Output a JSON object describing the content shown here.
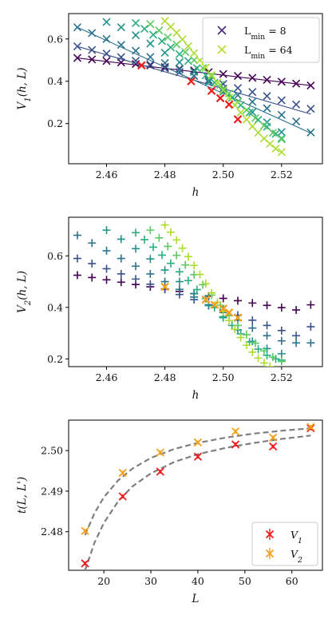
{
  "chart_data": [
    {
      "id": "v1",
      "type": "scatter",
      "xlabel": "h",
      "ylabel": "V_1(h, L)",
      "xlim": [
        2.447,
        2.534
      ],
      "ylim": [
        0.01,
        0.72
      ],
      "xticks": [
        2.46,
        2.48,
        2.5,
        2.52
      ],
      "xtick_labels": [
        "2.46",
        "2.48",
        "2.50",
        "2.52"
      ],
      "yticks": [
        0.2,
        0.4,
        0.6
      ],
      "ytick_labels": [
        "0.2",
        "0.4",
        "0.6"
      ],
      "grid": false,
      "legend_position": "top-right",
      "legend": [
        {
          "label": "L_min = 8",
          "color": "#472c7a"
        },
        {
          "label": "L_min = 64",
          "color": "#b5de2b"
        }
      ],
      "marker": "x",
      "series": [
        {
          "color": "#440154",
          "x": [
            2.45,
            2.455,
            2.46,
            2.465,
            2.47,
            2.475,
            2.48,
            2.485,
            2.49,
            2.495,
            2.5,
            2.505,
            2.51,
            2.515,
            2.52,
            2.525,
            2.53
          ],
          "y": [
            0.51,
            0.503,
            0.496,
            0.489,
            0.482,
            0.475,
            0.467,
            0.459,
            0.451,
            0.443,
            0.434,
            0.425,
            0.416,
            0.407,
            0.398,
            0.389,
            0.38
          ],
          "fit": [
            [
              2.45,
              0.51
            ],
            [
              2.53,
              0.38
            ]
          ]
        },
        {
          "color": "#3b518b",
          "x": [
            2.45,
            2.455,
            2.46,
            2.465,
            2.47,
            2.475,
            2.48,
            2.485,
            2.49,
            2.495,
            2.5,
            2.505,
            2.51,
            2.515,
            2.52,
            2.525,
            2.53
          ],
          "y": [
            0.565,
            0.548,
            0.531,
            0.514,
            0.497,
            0.479,
            0.461,
            0.443,
            0.425,
            0.406,
            0.387,
            0.368,
            0.349,
            0.33,
            0.31,
            0.29,
            0.27
          ],
          "fit": [
            [
              2.45,
              0.565
            ],
            [
              2.53,
              0.245
            ]
          ]
        },
        {
          "color": "#2c728e",
          "x": [
            2.45,
            2.455,
            2.46,
            2.465,
            2.47,
            2.475,
            2.48,
            2.485,
            2.49,
            2.495,
            2.5,
            2.505,
            2.51,
            2.515,
            2.52,
            2.525,
            2.53
          ],
          "y": [
            0.655,
            0.628,
            0.6,
            0.572,
            0.544,
            0.515,
            0.486,
            0.456,
            0.426,
            0.396,
            0.365,
            0.334,
            0.303,
            0.272,
            0.241,
            0.21,
            0.158
          ],
          "fit": [
            [
              2.45,
              0.655
            ],
            [
              2.53,
              0.155
            ]
          ]
        },
        {
          "color": "#21918c",
          "x": [
            2.46,
            2.465,
            2.47,
            2.475,
            2.48,
            2.485,
            2.49,
            2.495,
            2.5,
            2.505,
            2.51,
            2.515,
            2.52
          ],
          "y": [
            0.68,
            0.655,
            0.618,
            0.578,
            0.535,
            0.49,
            0.444,
            0.398,
            0.35,
            0.302,
            0.254,
            0.206,
            0.16
          ]
        },
        {
          "color": "#28ae80",
          "x": [
            2.47,
            2.473,
            2.476,
            2.479,
            2.482,
            2.485,
            2.488,
            2.491,
            2.494,
            2.497,
            2.5,
            2.503,
            2.506,
            2.509,
            2.512,
            2.515,
            2.518,
            2.52
          ],
          "y": [
            0.675,
            0.648,
            0.62,
            0.59,
            0.56,
            0.528,
            0.496,
            0.462,
            0.428,
            0.393,
            0.358,
            0.322,
            0.287,
            0.252,
            0.218,
            0.185,
            0.152,
            0.13
          ]
        },
        {
          "color": "#5ec962",
          "x": [
            2.475,
            2.478,
            2.481,
            2.484,
            2.487,
            2.49,
            2.493,
            2.496,
            2.499,
            2.502,
            2.505,
            2.508,
            2.511,
            2.514,
            2.517,
            2.52
          ],
          "y": [
            0.67,
            0.64,
            0.608,
            0.574,
            0.538,
            0.5,
            0.462,
            0.423,
            0.383,
            0.343,
            0.303,
            0.264,
            0.226,
            0.19,
            0.156,
            0.126
          ]
        },
        {
          "color": "#addc30",
          "x": [
            2.48,
            2.482,
            2.484,
            2.486,
            2.488,
            2.49,
            2.492,
            2.494,
            2.496,
            2.498,
            2.5,
            2.502,
            2.504,
            2.506,
            2.508,
            2.51,
            2.512,
            2.514,
            2.516,
            2.518,
            2.52
          ],
          "y": [
            0.685,
            0.658,
            0.629,
            0.598,
            0.566,
            0.533,
            0.499,
            0.465,
            0.43,
            0.394,
            0.358,
            0.322,
            0.287,
            0.252,
            0.219,
            0.187,
            0.157,
            0.129,
            0.104,
            0.082,
            0.065
          ]
        }
      ],
      "crossings": {
        "color": "#ee1c1c",
        "x": [
          2.472,
          2.489,
          2.496,
          2.499,
          2.502,
          2.505
        ],
        "y": [
          0.475,
          0.4,
          0.355,
          0.32,
          0.29,
          0.22
        ]
      }
    },
    {
      "id": "v2",
      "type": "scatter",
      "xlabel": "h",
      "ylabel": "V_2(h, L)",
      "xlim": [
        2.447,
        2.534
      ],
      "ylim": [
        0.17,
        0.75
      ],
      "xticks": [
        2.46,
        2.48,
        2.5,
        2.52
      ],
      "xtick_labels": [
        "2.46",
        "2.48",
        "2.50",
        "2.52"
      ],
      "yticks": [
        0.2,
        0.4,
        0.6
      ],
      "ytick_labels": [
        "0.2",
        "0.4",
        "0.6"
      ],
      "grid": false,
      "marker": "+",
      "series": [
        {
          "color": "#440154",
          "x": [
            2.45,
            2.455,
            2.46,
            2.465,
            2.47,
            2.475,
            2.48,
            2.485,
            2.49,
            2.495,
            2.5,
            2.505,
            2.51,
            2.515,
            2.52,
            2.525,
            2.53
          ],
          "y": [
            0.525,
            0.516,
            0.507,
            0.498,
            0.489,
            0.48,
            0.471,
            0.462,
            0.453,
            0.444,
            0.435,
            0.426,
            0.417,
            0.408,
            0.399,
            0.39,
            0.41
          ]
        },
        {
          "color": "#3b518b",
          "x": [
            2.45,
            2.455,
            2.46,
            2.465,
            2.47,
            2.475,
            2.48,
            2.485,
            2.49,
            2.495,
            2.5,
            2.505,
            2.51,
            2.515,
            2.52,
            2.525,
            2.53
          ],
          "y": [
            0.59,
            0.57,
            0.55,
            0.53,
            0.51,
            0.49,
            0.47,
            0.45,
            0.43,
            0.41,
            0.39,
            0.37,
            0.35,
            0.33,
            0.31,
            0.29,
            0.325
          ]
        },
        {
          "color": "#2c728e",
          "x": [
            2.45,
            2.455,
            2.46,
            2.465,
            2.47,
            2.475,
            2.48,
            2.485,
            2.49,
            2.495,
            2.5,
            2.505,
            2.51,
            2.515,
            2.52,
            2.525,
            2.53
          ],
          "y": [
            0.68,
            0.65,
            0.62,
            0.59,
            0.56,
            0.53,
            0.5,
            0.47,
            0.44,
            0.41,
            0.38,
            0.35,
            0.32,
            0.29,
            0.27,
            0.262,
            0.262
          ]
        },
        {
          "color": "#21918c",
          "x": [
            2.46,
            2.465,
            2.47,
            2.475,
            2.48,
            2.485,
            2.49,
            2.495,
            2.5,
            2.505,
            2.51,
            2.515,
            2.52
          ],
          "y": [
            0.7,
            0.665,
            0.628,
            0.588,
            0.545,
            0.5,
            0.454,
            0.407,
            0.36,
            0.313,
            0.268,
            0.24,
            0.22
          ]
        },
        {
          "color": "#28ae80",
          "x": [
            2.47,
            2.473,
            2.476,
            2.479,
            2.482,
            2.485,
            2.488,
            2.491,
            2.494,
            2.497,
            2.5,
            2.503,
            2.506,
            2.509,
            2.512,
            2.515,
            2.518,
            2.52
          ],
          "y": [
            0.69,
            0.663,
            0.634,
            0.603,
            0.571,
            0.538,
            0.504,
            0.469,
            0.434,
            0.399,
            0.364,
            0.33,
            0.297,
            0.266,
            0.238,
            0.214,
            0.2,
            0.195
          ]
        },
        {
          "color": "#5ec962",
          "x": [
            2.475,
            2.478,
            2.481,
            2.484,
            2.487,
            2.49,
            2.493,
            2.496,
            2.499,
            2.502,
            2.505,
            2.508,
            2.511,
            2.514,
            2.517,
            2.52
          ],
          "y": [
            0.7,
            0.67,
            0.637,
            0.602,
            0.565,
            0.527,
            0.488,
            0.448,
            0.408,
            0.368,
            0.33,
            0.294,
            0.261,
            0.231,
            0.207,
            0.19
          ]
        },
        {
          "color": "#addc30",
          "x": [
            2.48,
            2.482,
            2.484,
            2.486,
            2.488,
            2.49,
            2.492,
            2.494,
            2.496,
            2.498,
            2.5,
            2.502,
            2.504,
            2.506,
            2.508,
            2.51,
            2.512,
            2.514,
            2.516,
            2.518,
            2.52
          ],
          "y": [
            0.72,
            0.692,
            0.662,
            0.63,
            0.597,
            0.563,
            0.528,
            0.492,
            0.456,
            0.42,
            0.384,
            0.349,
            0.315,
            0.283,
            0.253,
            0.226,
            0.203,
            0.184,
            0.17,
            0.16,
            0.155
          ]
        }
      ],
      "crossings": {
        "color": "#f5a01a",
        "x": [
          2.48,
          2.494,
          2.497,
          2.5,
          2.502,
          2.505
        ],
        "y": [
          0.48,
          0.43,
          0.41,
          0.395,
          0.38,
          0.36
        ]
      }
    },
    {
      "id": "t",
      "type": "scatter",
      "xlabel": "L",
      "ylabel": "t(L, L')",
      "xlim": [
        12.5,
        66.5
      ],
      "ylim": [
        2.4705,
        2.5075
      ],
      "xticks": [
        20,
        30,
        40,
        50,
        60
      ],
      "xtick_labels": [
        "20",
        "30",
        "40",
        "50",
        "60"
      ],
      "yticks": [
        2.48,
        2.49,
        2.5
      ],
      "ytick_labels": [
        "2.48",
        "2.49",
        "2.50"
      ],
      "grid": false,
      "legend_position": "bottom-right",
      "legend": [
        {
          "label": "V_1",
          "color": "#ee1c1c"
        },
        {
          "label": "V_2",
          "color": "#f5a01a"
        }
      ],
      "series": [
        {
          "name": "V_1",
          "color": "#ee1c1c",
          "x": [
            16,
            24,
            32,
            40,
            48,
            56,
            64
          ],
          "y": [
            2.4722,
            2.4887,
            2.4948,
            2.4985,
            2.5015,
            2.501,
            2.5055
          ],
          "yerr": 0.0005
        },
        {
          "name": "V_2",
          "color": "#f5a01a",
          "x": [
            16,
            24,
            32,
            40,
            48,
            56,
            64
          ],
          "y": [
            2.4802,
            2.4945,
            2.4995,
            2.502,
            2.5047,
            2.5032,
            2.5058
          ],
          "yerr": 0.0005
        }
      ],
      "fits": [
        {
          "color": "#7f7f7f",
          "x": [
            16,
            18,
            20,
            23,
            26,
            30,
            35,
            40,
            46,
            52,
            58,
            64
          ],
          "y": [
            2.4705,
            2.4773,
            2.4822,
            2.4874,
            2.4911,
            2.4944,
            2.4972,
            2.4991,
            2.5007,
            2.5019,
            2.5029,
            2.5037
          ]
        },
        {
          "color": "#7f7f7f",
          "x": [
            16,
            18,
            20,
            23,
            26,
            30,
            35,
            40,
            46,
            52,
            58,
            64
          ],
          "y": [
            2.4792,
            2.4846,
            2.4885,
            2.4926,
            2.4955,
            2.4982,
            2.5004,
            2.5019,
            2.5032,
            2.5042,
            2.5049,
            2.5055
          ]
        }
      ]
    }
  ]
}
